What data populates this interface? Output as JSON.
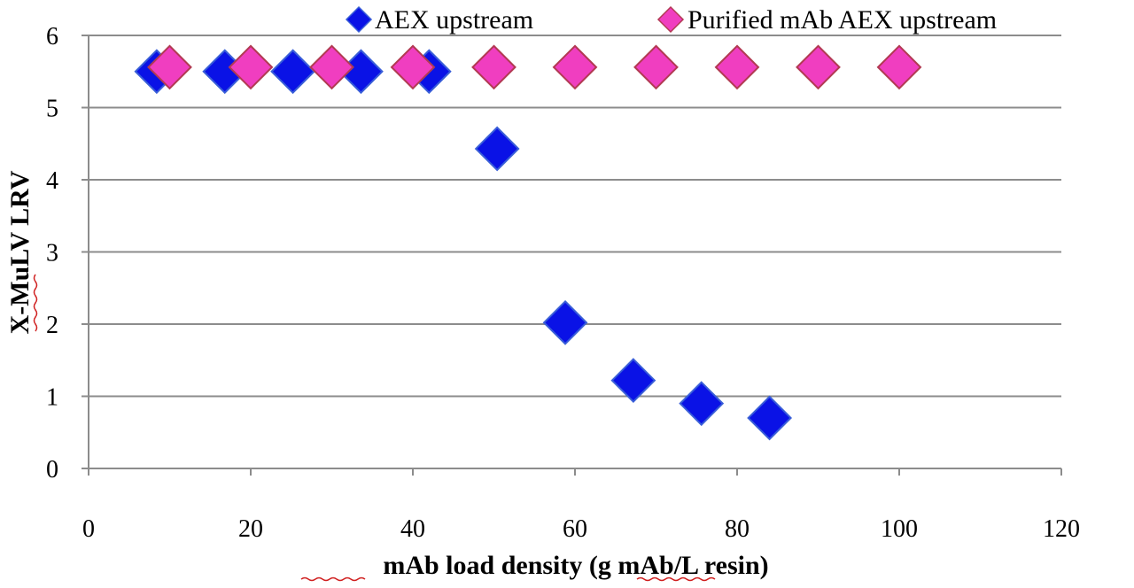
{
  "colors": {
    "series_aex": "#0a12e6",
    "series_aex_stroke": "#3a5fd8",
    "series_purified": "#f03ec0",
    "series_purified_stroke": "#b23a52",
    "grid": "#8c8c8c",
    "axis": "#8c8c8c"
  },
  "chart_data": {
    "type": "scatter",
    "title": "",
    "xlabel": "mAb load density (g mAb/L resin)",
    "ylabel": "X-MuLV LRV",
    "xlim": [
      0,
      120
    ],
    "ylim": [
      0,
      6
    ],
    "x_ticks": [
      "0",
      "20",
      "40",
      "60",
      "80",
      "100",
      "120"
    ],
    "y_ticks": [
      "0",
      "1",
      "2",
      "3",
      "4",
      "5",
      "6"
    ],
    "grid": "horizontal",
    "legend_position": "top",
    "marker": "diamond",
    "series": [
      {
        "name": "AEX upstream",
        "color_key": "series_aex",
        "points": [
          {
            "x": 8.4,
            "y": 5.5
          },
          {
            "x": 16.8,
            "y": 5.5
          },
          {
            "x": 25.2,
            "y": 5.5
          },
          {
            "x": 33.6,
            "y": 5.5
          },
          {
            "x": 42.0,
            "y": 5.5
          },
          {
            "x": 50.4,
            "y": 4.43
          },
          {
            "x": 58.8,
            "y": 2.02
          },
          {
            "x": 67.2,
            "y": 1.22
          },
          {
            "x": 75.6,
            "y": 0.9
          },
          {
            "x": 84.0,
            "y": 0.7
          }
        ]
      },
      {
        "name": "Purified mAb AEX upstream",
        "color_key": "series_purified",
        "points": [
          {
            "x": 10,
            "y": 5.56
          },
          {
            "x": 20,
            "y": 5.56
          },
          {
            "x": 30,
            "y": 5.56
          },
          {
            "x": 40,
            "y": 5.56
          },
          {
            "x": 50,
            "y": 5.56
          },
          {
            "x": 60,
            "y": 5.56
          },
          {
            "x": 70,
            "y": 5.56
          },
          {
            "x": 80,
            "y": 5.56
          },
          {
            "x": 90,
            "y": 5.56
          },
          {
            "x": 100,
            "y": 5.56
          }
        ]
      }
    ]
  }
}
